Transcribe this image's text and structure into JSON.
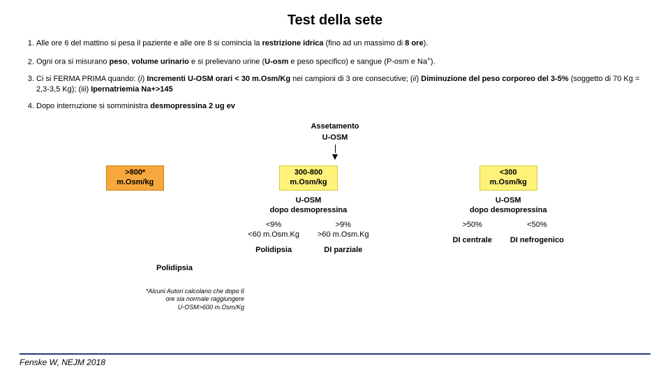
{
  "title": "Test della sete",
  "steps": {
    "s1a": "Alle ore 6 del mattino si pesa il paziente e alle ore 8 si comincia la ",
    "s1b": "restrizione idrica",
    "s1c": " (fino ad un massimo di ",
    "s1d": "8 ore",
    "s1e": ").",
    "s2a": "Ogni ora si misurano ",
    "s2b": "peso",
    "s2c": ", ",
    "s2d": "volume urinario",
    "s2e": " e si prelievano urine (",
    "s2f": "U-osm",
    "s2g": " e peso specifico) e sangue (P-osm e Na",
    "s2h": ").",
    "s3a": "Ci si FERMA PRIMA quando: (",
    "s3b": "i",
    "s3c": ") ",
    "s3d": "Incrementi U-OSM orari < 30 m.Osm/Kg",
    "s3e": " nei campioni di 3 ore consecutive; (",
    "s3f": "ii",
    "s3g": ") ",
    "s3h": "Diminuzione del peso corporeo del 3-5%",
    "s3i": " (soggetto di 70 Kg = 2,3-3,5 Kg); (iii) ",
    "s3j": "Ipernatriemia Na+>145",
    "s4a": "Dopo interruzione si somministra ",
    "s4b": "desmopressina 2 ug ev"
  },
  "flow": {
    "top": "Assetamento",
    "mid": "U-OSM"
  },
  "boxes": {
    "left": {
      "text": ">800*\nm.Osm/kg",
      "bg": "#f7a83d",
      "border": "#c97f12"
    },
    "center": {
      "text": "300-800\nm.Osm/kg",
      "bg": "#fff27a",
      "border": "#d6c93a"
    },
    "right": {
      "text": "<300\nm.Osm/kg",
      "bg": "#fff27a",
      "border": "#d6c93a"
    }
  },
  "left": {
    "diag": "Polidipsia",
    "footnote": "*Alcuni Autori calcolano che dopo 6\nore sia normale raggiungere\nU-OSM>600 m.Osm/Kg"
  },
  "center": {
    "sub": "U-OSM\ndopo desmopressina",
    "c1a": "<9%",
    "c1b": "<60 m.Osm.Kg",
    "c1d": "Polidipsia",
    "c2a": ">9%",
    "c2b": ">60 m.Osm.Kg",
    "c2d": "DI parziale"
  },
  "right": {
    "sub": "U-OSM\ndopo desmopressina",
    "c1a": ">50%",
    "c1d": "DI centrale",
    "c2a": "<50%",
    "c2d": "DI nefrogenico"
  },
  "footer": {
    "credit": "Fenske W, NEJM 2018",
    "line_color": "#2a3a7a"
  }
}
